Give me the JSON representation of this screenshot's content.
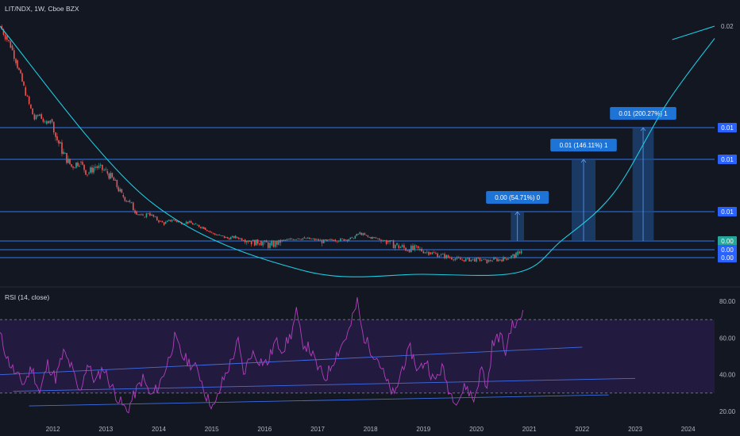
{
  "header": {
    "symbol_line": "LIT/NDX, 1W, Cboe BZX"
  },
  "rsi_panel": {
    "title": "RSI (14, close)"
  },
  "chart_data": {
    "type": "line",
    "price_panel": {
      "series_close": [
        [
          2011.0,
          0.0198
        ],
        [
          2011.1,
          0.019
        ],
        [
          2011.2,
          0.0182
        ],
        [
          2011.3,
          0.017
        ],
        [
          2011.45,
          0.0148
        ],
        [
          2011.55,
          0.0134
        ],
        [
          2011.65,
          0.0122
        ],
        [
          2011.75,
          0.0126
        ],
        [
          2011.85,
          0.0118
        ],
        [
          2011.95,
          0.0122
        ],
        [
          2012.05,
          0.0112
        ],
        [
          2012.2,
          0.0106
        ],
        [
          2012.35,
          0.0101
        ],
        [
          2012.5,
          0.0103
        ],
        [
          2012.65,
          0.0098
        ],
        [
          2012.8,
          0.0101
        ],
        [
          2013.0,
          0.0099
        ],
        [
          2013.15,
          0.0095
        ],
        [
          2013.3,
          0.0089
        ],
        [
          2013.45,
          0.0086
        ],
        [
          2013.55,
          0.0082
        ],
        [
          2013.7,
          0.0078
        ],
        [
          2013.8,
          0.0081
        ],
        [
          2013.9,
          0.0078
        ],
        [
          2014.0,
          0.0075
        ],
        [
          2014.1,
          0.0073
        ],
        [
          2014.25,
          0.0076
        ],
        [
          2014.4,
          0.0074
        ],
        [
          2014.55,
          0.0074
        ],
        [
          2014.7,
          0.0072
        ],
        [
          2014.85,
          0.007
        ],
        [
          2015.0,
          0.0066
        ],
        [
          2015.15,
          0.0064
        ],
        [
          2015.3,
          0.0062
        ],
        [
          2015.45,
          0.0063
        ],
        [
          2015.6,
          0.0061
        ],
        [
          2015.75,
          0.006
        ],
        [
          2015.9,
          0.006
        ],
        [
          2016.1,
          0.0059
        ],
        [
          2016.3,
          0.006
        ],
        [
          2016.45,
          0.0061
        ],
        [
          2016.6,
          0.0062
        ],
        [
          2016.75,
          0.0062
        ],
        [
          2016.95,
          0.0061
        ],
        [
          2017.15,
          0.006
        ],
        [
          2017.3,
          0.0061
        ],
        [
          2017.5,
          0.0061
        ],
        [
          2017.65,
          0.0062
        ],
        [
          2017.8,
          0.0066
        ],
        [
          2017.95,
          0.0063
        ],
        [
          2018.1,
          0.0062
        ],
        [
          2018.3,
          0.006
        ],
        [
          2018.5,
          0.0059
        ],
        [
          2018.7,
          0.0058
        ],
        [
          2018.9,
          0.0058
        ],
        [
          2019.1,
          0.0057
        ],
        [
          2019.3,
          0.0056
        ],
        [
          2019.5,
          0.0055
        ],
        [
          2019.7,
          0.0054
        ],
        [
          2019.9,
          0.0054
        ],
        [
          2020.1,
          0.0054
        ],
        [
          2020.2,
          0.0053
        ],
        [
          2020.3,
          0.0054
        ],
        [
          2020.45,
          0.0054
        ],
        [
          2020.6,
          0.0055
        ],
        [
          2020.75,
          0.0056
        ],
        [
          2020.85,
          0.0058
        ]
      ],
      "curve_main": [
        [
          2011.0,
          0.0198
        ],
        [
          2013.8,
          0.0087
        ],
        [
          2016.7,
          0.0049
        ],
        [
          2019.0,
          0.0047
        ],
        [
          2020.8,
          0.0048
        ],
        [
          2021.6,
          0.006
        ],
        [
          2022.6,
          0.009
        ],
        [
          2023.6,
          0.0135
        ],
        [
          2024.5,
          0.0188
        ]
      ],
      "curve_extension": [
        [
          2023.7,
          0.0187
        ],
        [
          2024.5,
          0.0198
        ]
      ],
      "horizontal_levels": [
        0.0115,
        0.0104,
        0.0082,
        0.006,
        0.0058,
        0.0055
      ],
      "projection_boxes": [
        {
          "x_start": 2020.65,
          "x_end": 2020.9,
          "bottom": 0.006,
          "top": 0.0082,
          "label": "0.00 (54.71%) 0"
        },
        {
          "x_start": 2021.8,
          "x_end": 2022.25,
          "bottom": 0.006,
          "top": 0.0104,
          "label": "0.01 (146.11%) 1"
        },
        {
          "x_start": 2022.95,
          "x_end": 2023.35,
          "bottom": 0.006,
          "top": 0.0115,
          "label": "0.01 (200.27%) 1"
        }
      ],
      "y_axis_labels": [
        {
          "value": 0.0198,
          "text": "0.02",
          "badge": false
        },
        {
          "value": 0.0115,
          "text": "0.01",
          "badge": true,
          "color": "#2962ff"
        },
        {
          "value": 0.0104,
          "text": "0.01",
          "badge": true,
          "color": "#2962ff"
        },
        {
          "value": 0.0082,
          "text": "0.01",
          "badge": true,
          "color": "#2962ff"
        },
        {
          "value": 0.006,
          "text": "0.00",
          "badge": true,
          "color": "#26a69a"
        },
        {
          "value": 0.0058,
          "text": "0.00",
          "badge": true,
          "color": "#2962ff"
        },
        {
          "value": 0.0055,
          "text": "0.00",
          "badge": true,
          "color": "#2962ff"
        }
      ]
    },
    "rsi_panel": {
      "series": [
        [
          2011.0,
          62
        ],
        [
          2011.15,
          48
        ],
        [
          2011.3,
          40
        ],
        [
          2011.45,
          35
        ],
        [
          2011.6,
          44
        ],
        [
          2011.75,
          30
        ],
        [
          2011.9,
          46
        ],
        [
          2012.05,
          38
        ],
        [
          2012.2,
          52
        ],
        [
          2012.35,
          44
        ],
        [
          2012.5,
          30
        ],
        [
          2012.65,
          46
        ],
        [
          2012.8,
          36
        ],
        [
          2012.95,
          44
        ],
        [
          2013.1,
          34
        ],
        [
          2013.25,
          26
        ],
        [
          2013.4,
          20
        ],
        [
          2013.55,
          30
        ],
        [
          2013.7,
          38
        ],
        [
          2013.85,
          28
        ],
        [
          2014.0,
          34
        ],
        [
          2014.15,
          45
        ],
        [
          2014.3,
          60
        ],
        [
          2014.45,
          50
        ],
        [
          2014.6,
          46
        ],
        [
          2014.75,
          42
        ],
        [
          2014.9,
          28
        ],
        [
          2015.05,
          22
        ],
        [
          2015.2,
          36
        ],
        [
          2015.35,
          46
        ],
        [
          2015.5,
          58
        ],
        [
          2015.6,
          40
        ],
        [
          2015.75,
          52
        ],
        [
          2015.9,
          48
        ],
        [
          2016.05,
          46
        ],
        [
          2016.2,
          58
        ],
        [
          2016.35,
          54
        ],
        [
          2016.5,
          62
        ],
        [
          2016.6,
          74
        ],
        [
          2016.7,
          58
        ],
        [
          2016.85,
          54
        ],
        [
          2017.0,
          44
        ],
        [
          2017.15,
          38
        ],
        [
          2017.3,
          48
        ],
        [
          2017.45,
          56
        ],
        [
          2017.6,
          64
        ],
        [
          2017.75,
          80
        ],
        [
          2017.85,
          62
        ],
        [
          2018.0,
          54
        ],
        [
          2018.15,
          48
        ],
        [
          2018.3,
          36
        ],
        [
          2018.45,
          28
        ],
        [
          2018.6,
          44
        ],
        [
          2018.75,
          54
        ],
        [
          2018.9,
          42
        ],
        [
          2019.05,
          48
        ],
        [
          2019.2,
          36
        ],
        [
          2019.35,
          44
        ],
        [
          2019.5,
          30
        ],
        [
          2019.65,
          26
        ],
        [
          2019.8,
          34
        ],
        [
          2019.95,
          26
        ],
        [
          2020.1,
          44
        ],
        [
          2020.2,
          32
        ],
        [
          2020.3,
          56
        ],
        [
          2020.45,
          62
        ],
        [
          2020.55,
          52
        ],
        [
          2020.65,
          66
        ],
        [
          2020.8,
          68
        ],
        [
          2020.88,
          75
        ]
      ],
      "overbought": 70,
      "oversold": 30,
      "trendlines": [
        {
          "from": [
            2011.0,
            40
          ],
          "to": [
            2022.0,
            55
          ]
        },
        {
          "from": [
            2011.25,
            31
          ],
          "to": [
            2023.0,
            38
          ]
        },
        {
          "from": [
            2011.55,
            23
          ],
          "to": [
            2022.5,
            29
          ]
        }
      ],
      "y_axis_labels": [
        "80.00",
        "60.00",
        "40.00",
        "20.00"
      ],
      "y_values": [
        80,
        60,
        40,
        20
      ]
    },
    "x_axis_labels": [
      "2012",
      "2013",
      "2014",
      "2015",
      "2016",
      "2017",
      "2018",
      "2019",
      "2020",
      "2021",
      "2022",
      "2023",
      "2024"
    ],
    "x_values": [
      2012,
      2013,
      2014,
      2015,
      2016,
      2017,
      2018,
      2019,
      2020,
      2021,
      2022,
      2023,
      2024
    ],
    "colors": {
      "background": "#131722",
      "up": "#26a69a",
      "down": "#ef5350",
      "curve": "#1ecbe1",
      "level": "#3179f5",
      "box_fill": "#1e4a80",
      "label": "#1e73d6",
      "rsi_line": "#b23fbd",
      "rsi_band": "#2a1e4a",
      "rsi_trend": "#3f6ee8",
      "badge_text": "#ffffff"
    }
  }
}
